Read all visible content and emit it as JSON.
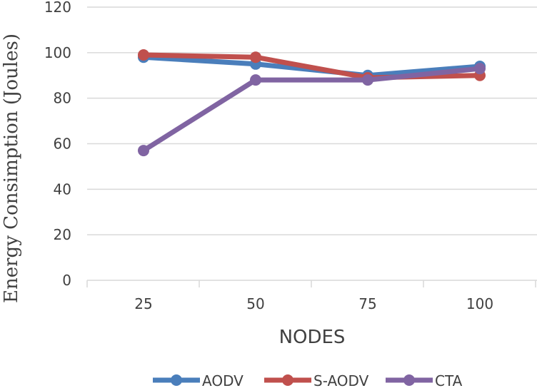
{
  "chart_data": {
    "type": "line",
    "title": "",
    "xlabel": "NODES",
    "ylabel": "Energy Consimption (Joules)",
    "categories": [
      "25",
      "50",
      "75",
      "100"
    ],
    "ylim": [
      0,
      120
    ],
    "yticks": [
      0,
      20,
      40,
      60,
      80,
      100,
      120
    ],
    "grid": true,
    "legend": "bottom",
    "series": [
      {
        "name": "AODV",
        "color": "#4a7ebb",
        "values": [
          98,
          95,
          90,
          94
        ]
      },
      {
        "name": "S-AODV",
        "color": "#c0504d",
        "values": [
          99,
          98,
          89,
          90
        ]
      },
      {
        "name": "CTA",
        "color": "#8064a2",
        "values": [
          57,
          88,
          88,
          93
        ]
      }
    ]
  }
}
